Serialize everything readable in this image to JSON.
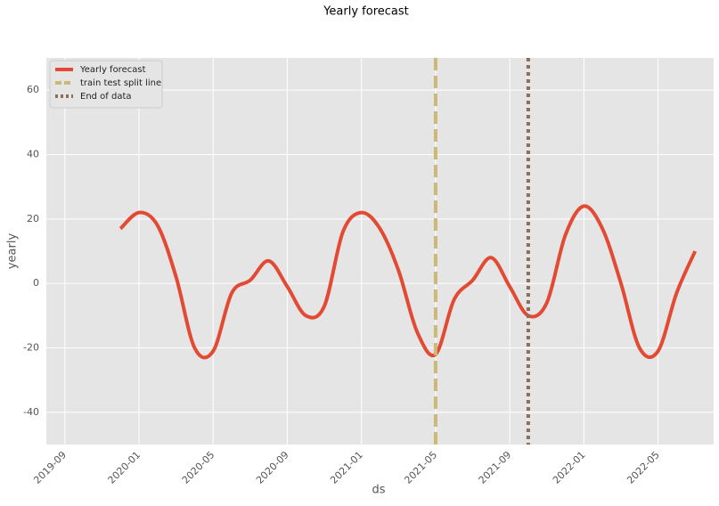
{
  "chart_data": {
    "type": "line",
    "title": "Yearly forecast",
    "x_label": "ds",
    "y_label": "yearly",
    "x": [
      "2019-12",
      "2020-01",
      "2020-02",
      "2020-03",
      "2020-04",
      "2020-05",
      "2020-06",
      "2020-07",
      "2020-08",
      "2020-09",
      "2020-10",
      "2020-11",
      "2020-12",
      "2021-01",
      "2021-02",
      "2021-03",
      "2021-04",
      "2021-05",
      "2021-06",
      "2021-07",
      "2021-08",
      "2021-09",
      "2021-10",
      "2021-11",
      "2021-12",
      "2022-01",
      "2022-02",
      "2022-03",
      "2022-04",
      "2022-05",
      "2022-06",
      "2022-07"
    ],
    "series": [
      {
        "name": "Yearly forecast",
        "color": "#e24a33",
        "values": [
          17,
          22,
          18,
          2,
          -20,
          -21,
          -3,
          1,
          7,
          -1,
          -10,
          -7,
          16,
          22,
          17,
          4,
          -15,
          -22,
          -5,
          1,
          8,
          -1,
          -10,
          -6,
          15,
          24,
          17,
          0,
          -20,
          -21,
          -3,
          10
        ]
      }
    ],
    "vlines": [
      {
        "name": "train test split line",
        "color": "#ccb974",
        "style": "dashed",
        "x": "2021-05"
      },
      {
        "name": "End of data",
        "color": "#8c6d5a",
        "style": "dotted",
        "x": "2021-10"
      }
    ],
    "xlim": [
      "2019-08",
      "2022-08"
    ],
    "xticks": [
      "2019-09",
      "2020-01",
      "2020-05",
      "2020-09",
      "2021-01",
      "2021-05",
      "2021-09",
      "2022-01",
      "2022-05"
    ],
    "ylim": [
      -50,
      70
    ],
    "yticks": [
      -40,
      -20,
      0,
      20,
      40,
      60
    ],
    "grid": true,
    "legend": "upper left"
  }
}
